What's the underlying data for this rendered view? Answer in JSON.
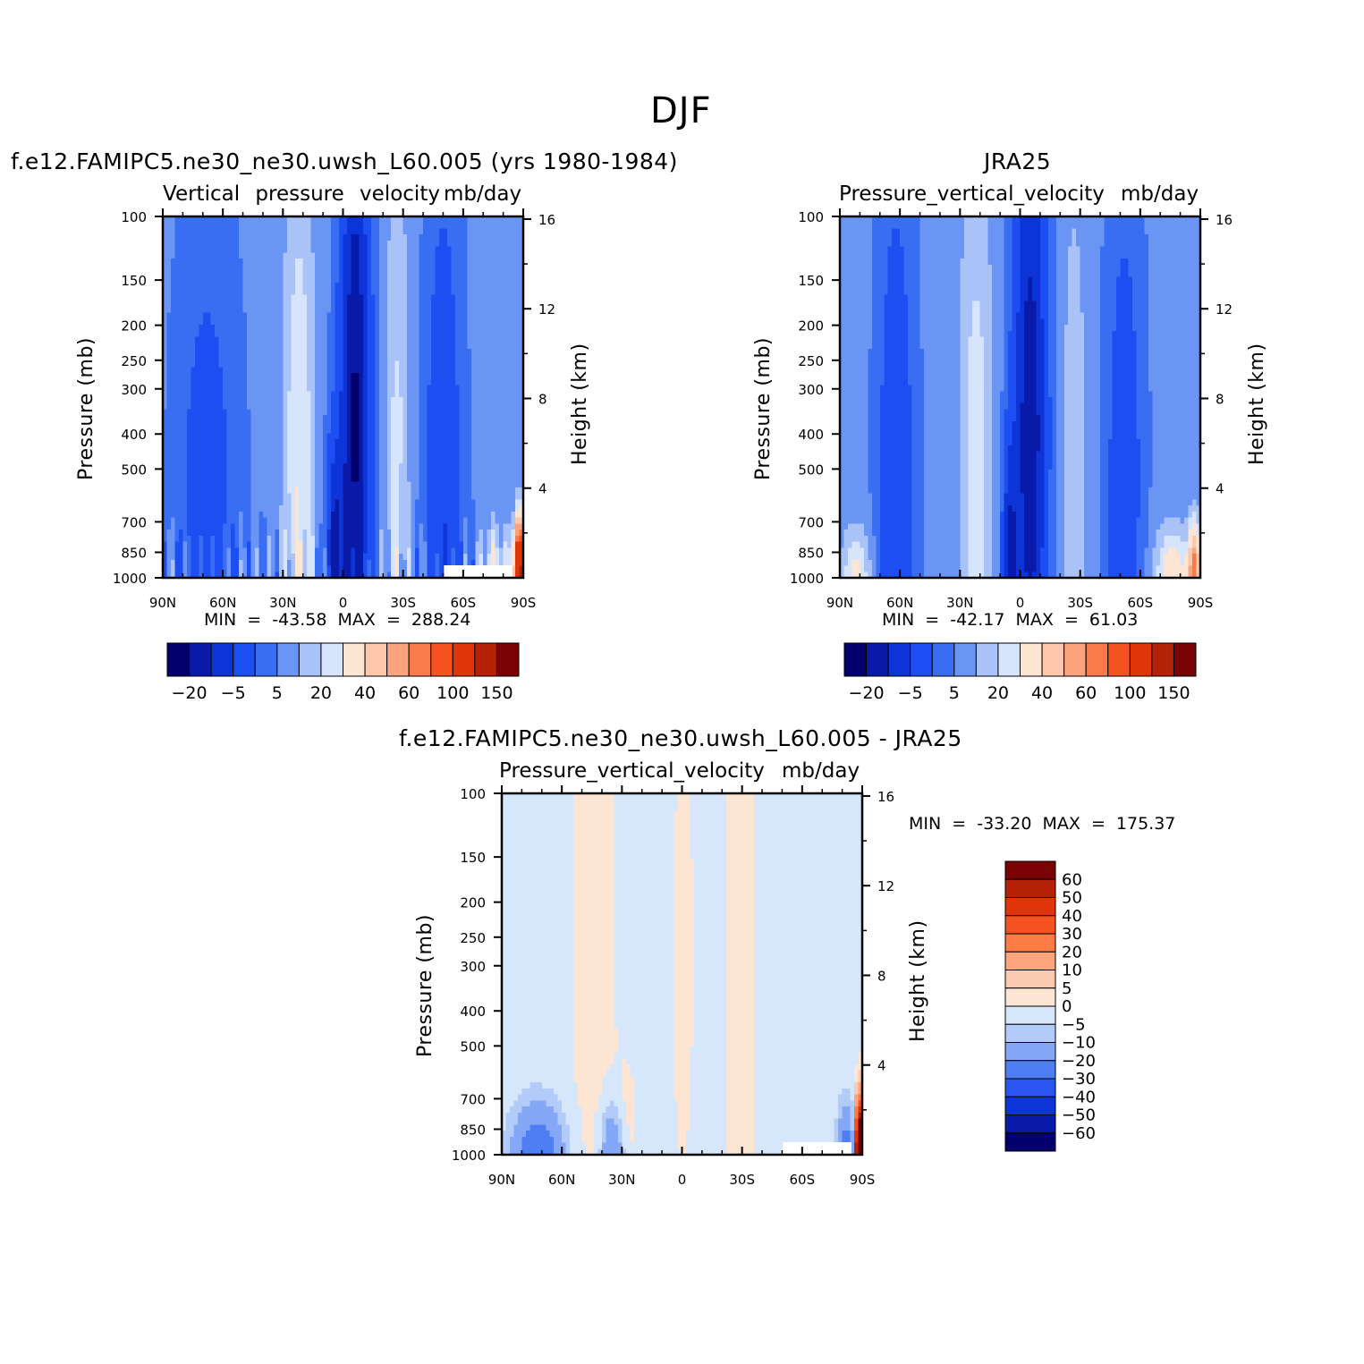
{
  "figure": {
    "title": "DJF"
  },
  "chart_data": [
    {
      "type": "heatmap",
      "panel": "model",
      "title": "f.e12.FAMIPC5.ne30_ne30.uwsh_L60.005 (yrs 1980-1984)",
      "subtitle_left": "Vertical pressure velocity",
      "subtitle_right": "mb/day",
      "ylabel": "Pressure (mb)",
      "y2label": "Height (km)",
      "x_tick_labels": [
        "90N",
        "60N",
        "30N",
        "0",
        "30S",
        "60S",
        "90S"
      ],
      "x_values": [
        90,
        60,
        30,
        0,
        -30,
        -60,
        -90
      ],
      "y_tick_labels": [
        "100",
        "150",
        "200",
        "250",
        "300",
        "400",
        "500",
        "700",
        "850",
        "1000"
      ],
      "y_values": [
        100,
        150,
        200,
        250,
        300,
        400,
        500,
        700,
        850,
        1000
      ],
      "ylim": [
        1000,
        100
      ],
      "y_scale": "log",
      "y2_tick_labels": [
        "16",
        "12",
        "8",
        "4"
      ],
      "y2_values": [
        16,
        12,
        8,
        4
      ],
      "stats_text": "MIN = -43.58   MAX = 288.24",
      "min": -43.58,
      "max": 288.24,
      "colorbar": {
        "orientation": "horizontal",
        "label_text": [
          "-20",
          "-5",
          "5",
          "20",
          "40",
          "60",
          "100",
          "150"
        ],
        "colors": [
          "#03006e",
          "#0a1aa8",
          "#0c34d6",
          "#1c4ef2",
          "#3a6ef2",
          "#6b95f5",
          "#a9c2f7",
          "#d6e5fb",
          "#fde5d3",
          "#fcc7ab",
          "#fba37c",
          "#f97b4b",
          "#f45221",
          "#e03409",
          "#b52207",
          "#7a0303"
        ]
      }
    },
    {
      "type": "heatmap",
      "panel": "obs",
      "title": "JRA25",
      "subtitle_left": "Pressure_vertical_velocity",
      "subtitle_right": "mb/day",
      "ylabel": "Pressure (mb)",
      "y2label": "Height (km)",
      "x_tick_labels": [
        "90N",
        "60N",
        "30N",
        "0",
        "30S",
        "60S",
        "90S"
      ],
      "x_values": [
        90,
        60,
        30,
        0,
        -30,
        -60,
        -90
      ],
      "y_tick_labels": [
        "100",
        "150",
        "200",
        "250",
        "300",
        "400",
        "500",
        "700",
        "850",
        "1000"
      ],
      "y_values": [
        100,
        150,
        200,
        250,
        300,
        400,
        500,
        700,
        850,
        1000
      ],
      "ylim": [
        1000,
        100
      ],
      "y_scale": "log",
      "y2_tick_labels": [
        "16",
        "12",
        "8",
        "4"
      ],
      "y2_values": [
        16,
        12,
        8,
        4
      ],
      "stats_text": "MIN = -42.17   MAX =  61.03",
      "min": -42.17,
      "max": 61.03,
      "colorbar": {
        "orientation": "horizontal",
        "label_text": [
          "-20",
          "-5",
          "5",
          "20",
          "40",
          "60",
          "100",
          "150"
        ],
        "colors": [
          "#03006e",
          "#0a1aa8",
          "#0c34d6",
          "#1c4ef2",
          "#3a6ef2",
          "#6b95f5",
          "#a9c2f7",
          "#d6e5fb",
          "#fde5d3",
          "#fcc7ab",
          "#fba37c",
          "#f97b4b",
          "#f45221",
          "#e03409",
          "#b52207",
          "#7a0303"
        ]
      }
    },
    {
      "type": "heatmap",
      "panel": "diff",
      "title": "f.e12.FAMIPC5.ne30_ne30.uwsh_L60.005 - JRA25",
      "subtitle_left": "Pressure_vertical_velocity",
      "subtitle_right": "mb/day",
      "ylabel": "Pressure (mb)",
      "y2label": "Height (km)",
      "x_tick_labels": [
        "90N",
        "60N",
        "30N",
        "0",
        "30S",
        "60S",
        "90S"
      ],
      "x_values": [
        90,
        60,
        30,
        0,
        -30,
        -60,
        -90
      ],
      "y_tick_labels": [
        "100",
        "150",
        "200",
        "250",
        "300",
        "400",
        "500",
        "700",
        "850",
        "1000"
      ],
      "y_values": [
        100,
        150,
        200,
        250,
        300,
        400,
        500,
        700,
        850,
        1000
      ],
      "ylim": [
        1000,
        100
      ],
      "y_scale": "log",
      "y2_tick_labels": [
        "16",
        "12",
        "8",
        "4"
      ],
      "y2_values": [
        16,
        12,
        8,
        4
      ],
      "stats_text": "MIN = -33.20   MAX = 175.37",
      "min": -33.2,
      "max": 175.37,
      "colorbar": {
        "orientation": "vertical",
        "label_text": [
          "60",
          "50",
          "40",
          "30",
          "20",
          "10",
          "5",
          "0",
          "-5",
          "-10",
          "-20",
          "-30",
          "-40",
          "-50",
          "-60"
        ],
        "colors": [
          "#7a0303",
          "#b52207",
          "#e03409",
          "#f45221",
          "#fb7c45",
          "#fca57d",
          "#fccab0",
          "#fde5d3",
          "#d6e6fb",
          "#b3cbf8",
          "#85a8f6",
          "#4e7ef2",
          "#2a55f0",
          "#0c34d6",
          "#0a1aa8",
          "#03006e"
        ]
      }
    }
  ]
}
